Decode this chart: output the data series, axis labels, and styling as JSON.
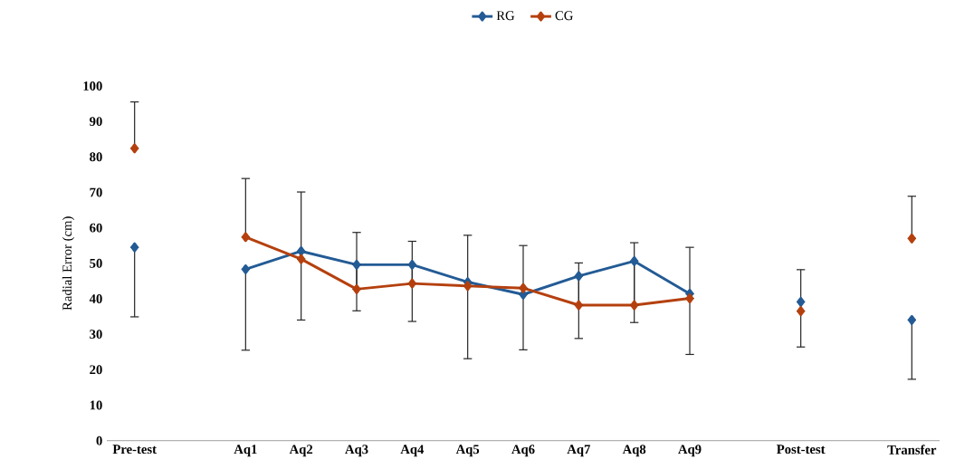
{
  "chart_data": {
    "type": "line",
    "ylabel": "Radial Error (cm)",
    "categories": [
      "Pre-test",
      null,
      "Aq1",
      "Aq2",
      "Aq3",
      "Aq4",
      "Aq5",
      "Aq6",
      "Aq7",
      "Aq8",
      "Aq9",
      null,
      "Post-test",
      null,
      "Transfer"
    ],
    "series": [
      {
        "name": "RG",
        "color": "#235b95",
        "values": [
          54.5,
          null,
          48.3,
          53.4,
          49.6,
          49.6,
          44.7,
          41.2,
          46.4,
          50.6,
          41.4,
          null,
          39.1,
          null,
          34.0
        ],
        "errors": [
          [
            34.9,
            54.5
          ],
          null,
          [
            25.5,
            48.3
          ],
          [
            34.0,
            53.4
          ],
          [
            36.6,
            49.6
          ],
          [
            33.6,
            49.6
          ],
          [
            23.1,
            44.7
          ],
          [
            25.6,
            41.2
          ],
          [
            28.8,
            46.4
          ],
          [
            33.3,
            50.6
          ],
          [
            24.3,
            41.4
          ],
          null,
          [
            26.4,
            39.1
          ],
          null,
          [
            17.3,
            34.0
          ]
        ]
      },
      {
        "name": "CG",
        "color": "#b5400e",
        "values": [
          82.4,
          null,
          57.4,
          51.2,
          42.7,
          44.3,
          43.6,
          43.0,
          38.2,
          38.2,
          40.1,
          null,
          36.5,
          null,
          57.0
        ],
        "errors": [
          [
            82.4,
            95.5
          ],
          null,
          [
            57.4,
            73.9
          ],
          [
            51.2,
            70.1
          ],
          [
            42.7,
            58.7
          ],
          [
            44.3,
            56.2
          ],
          [
            43.6,
            57.9
          ],
          [
            43.0,
            55.0
          ],
          [
            38.2,
            50.1
          ],
          [
            38.2,
            55.8
          ],
          [
            40.1,
            54.5
          ],
          null,
          [
            36.5,
            48.2
          ],
          null,
          [
            57.0,
            68.9
          ]
        ]
      }
    ],
    "ylim": [
      0,
      100
    ],
    "yticks": [
      0,
      10,
      20,
      30,
      40,
      50,
      60,
      70,
      80,
      90,
      100
    ],
    "legend": "top",
    "marker": "diamond",
    "line_style": "solid"
  }
}
